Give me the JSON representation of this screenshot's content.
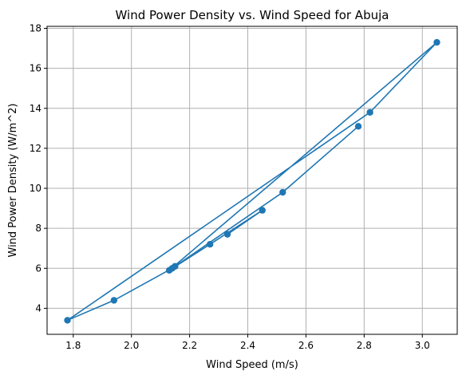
{
  "chart_data": {
    "type": "line",
    "title": "Wind Power Density vs. Wind Speed for Abuja",
    "xlabel": "Wind Speed (m/s)",
    "ylabel": "Wind Power Density (W/m^2)",
    "xlim": [
      1.71,
      3.12
    ],
    "ylim": [
      2.7,
      18.1
    ],
    "xticks": [
      1.8,
      2.0,
      2.2,
      2.4,
      2.6,
      2.8,
      3.0
    ],
    "xtick_labels": [
      "1.8",
      "2.0",
      "2.2",
      "2.4",
      "2.6",
      "2.8",
      "3.0"
    ],
    "yticks": [
      4,
      6,
      8,
      10,
      12,
      14,
      16,
      18
    ],
    "ytick_labels": [
      "4",
      "6",
      "8",
      "10",
      "12",
      "14",
      "16",
      "18"
    ],
    "grid": true,
    "marker": "circle",
    "series": [
      {
        "name": "Abuja",
        "color": "#1f77b4",
        "x": [
          2.33,
          2.45,
          2.27,
          2.13,
          3.05,
          2.82,
          1.78,
          1.94,
          2.14,
          2.15,
          2.52,
          2.78
        ],
        "y": [
          7.7,
          8.9,
          7.2,
          5.9,
          17.3,
          13.8,
          3.4,
          4.4,
          6.0,
          6.1,
          9.8,
          13.1
        ]
      }
    ]
  }
}
